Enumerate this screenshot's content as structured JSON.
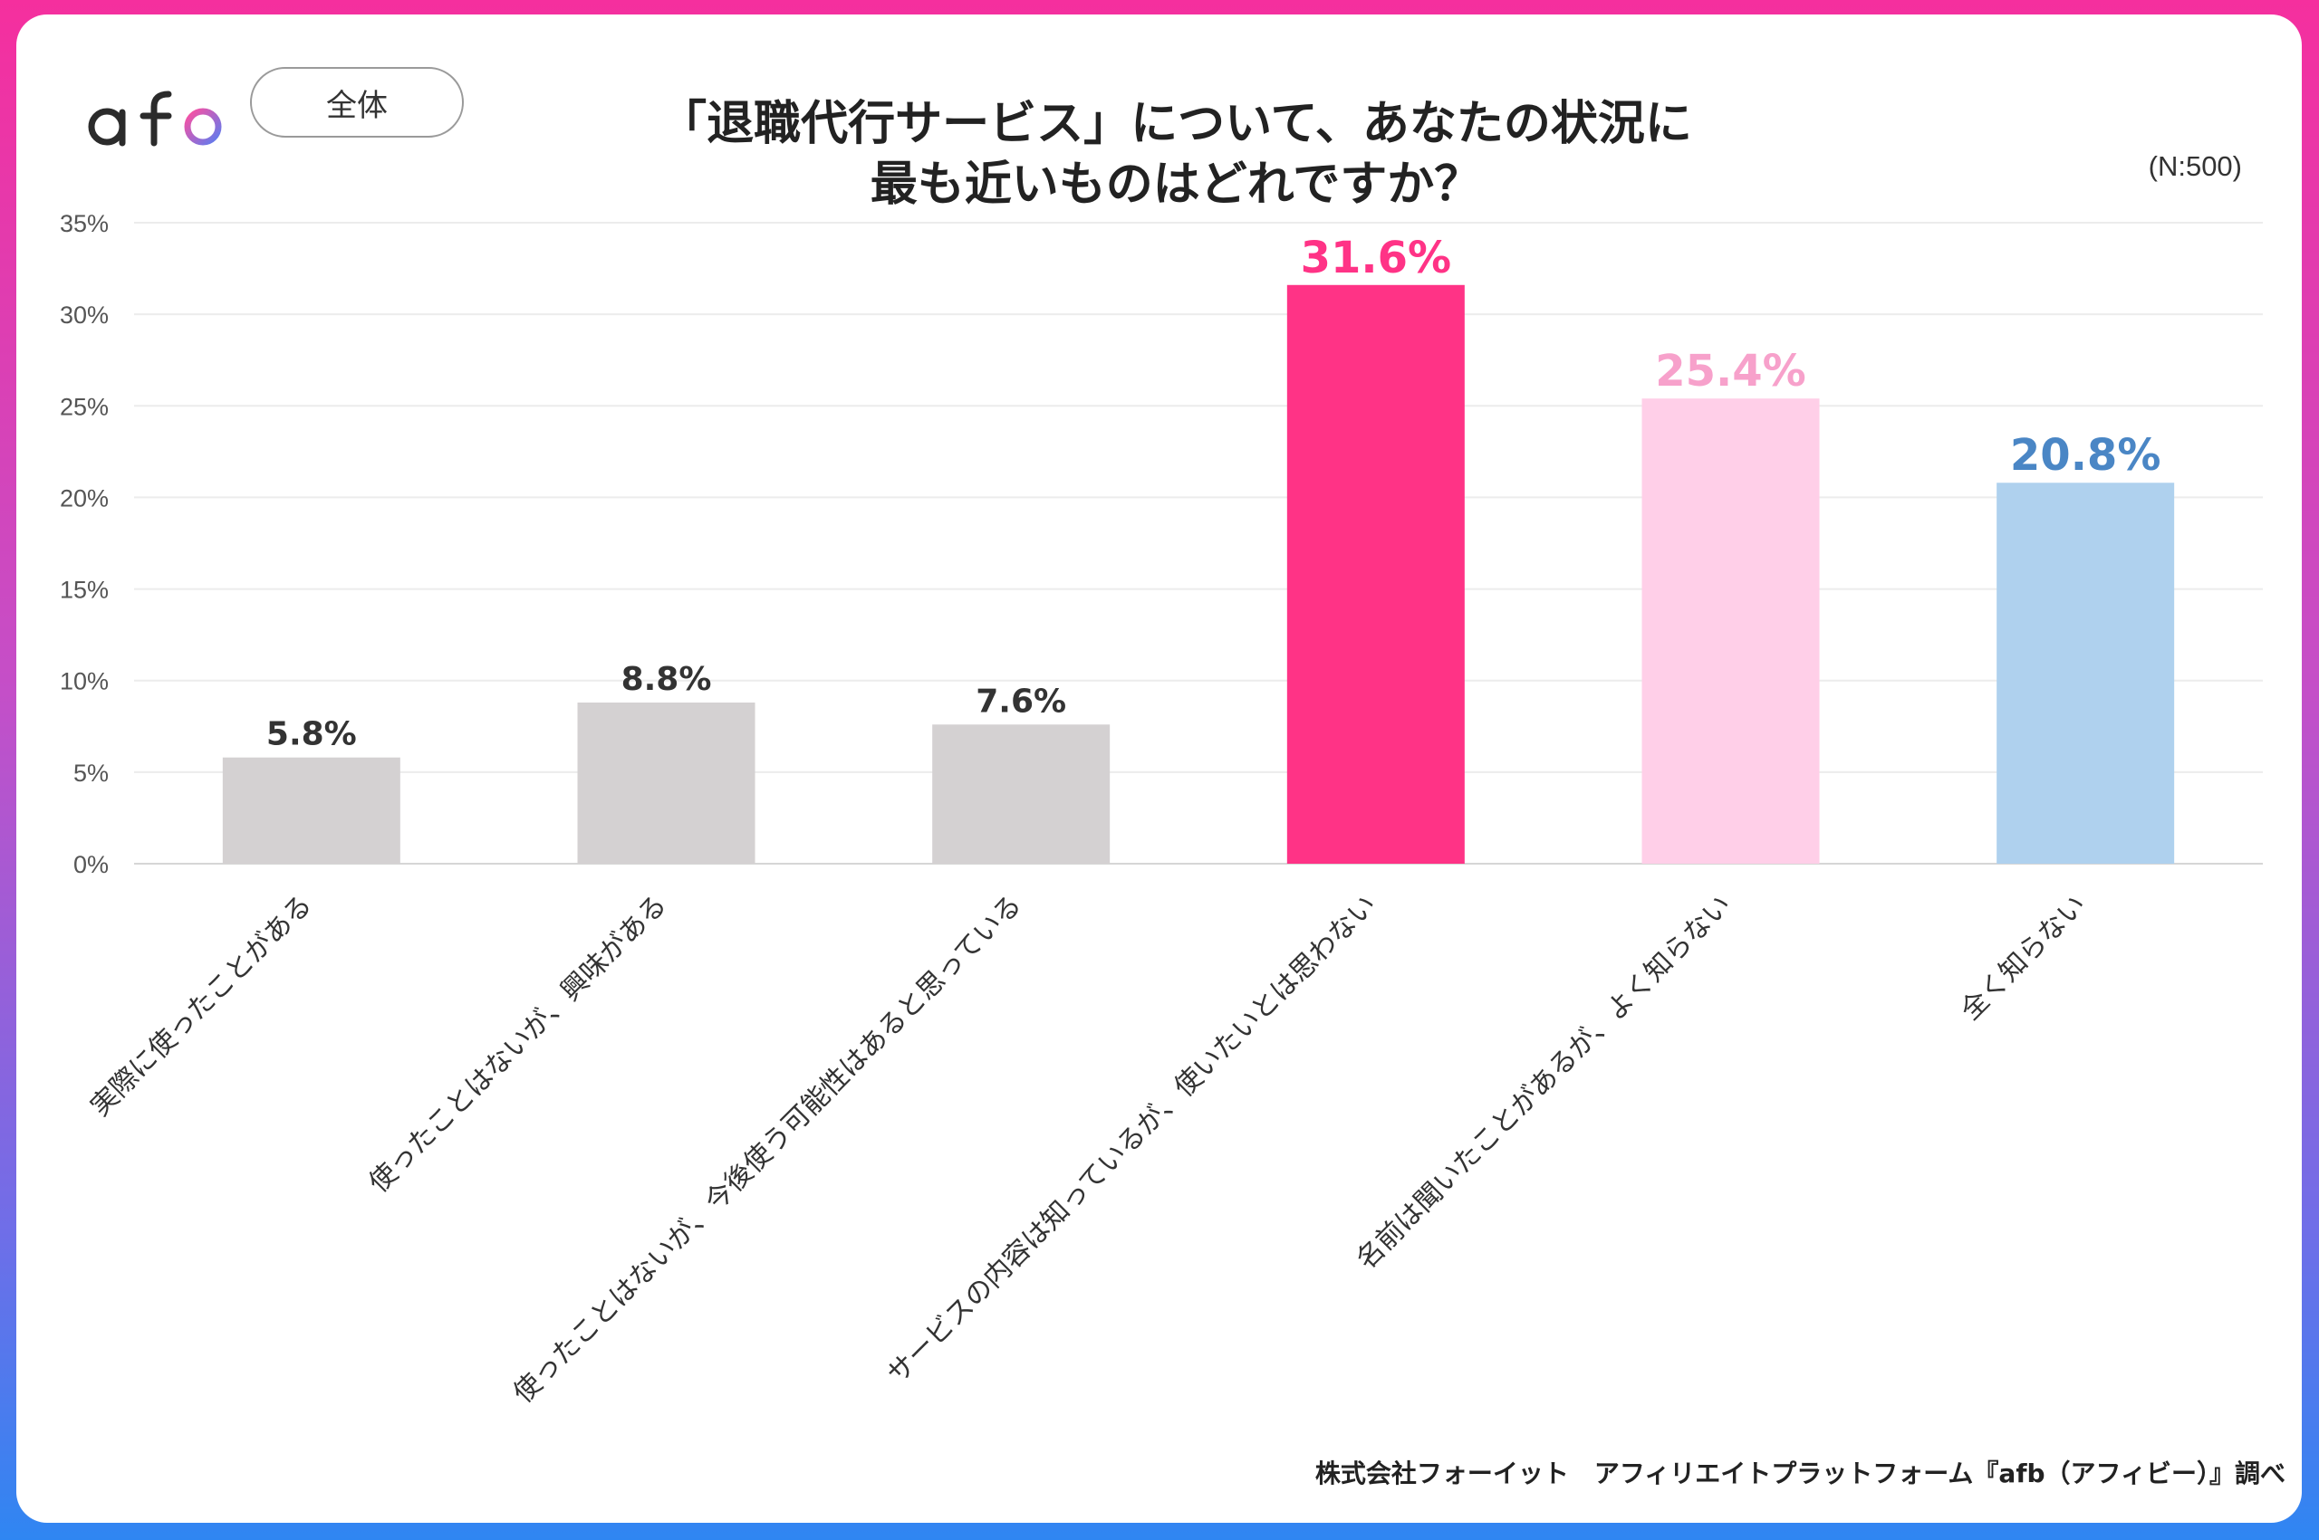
{
  "brand": {
    "logo_text": "afb"
  },
  "badge": {
    "label": "全体"
  },
  "title": {
    "line1": "「退職代行サービス」について、あなたの状況に",
    "line2": "最も近いものはどれですか？"
  },
  "sample_size": "(N:500)",
  "footer": {
    "source": "株式会社フォーイット　アフィリエイトプラットフォーム『afb（アフィビー）』調べ"
  },
  "colors": {
    "grey_bar": "#d4d1d2",
    "magenta": "#ff3386",
    "pink": "#ffcfe8",
    "pink_label": "#f7a1cb",
    "blue": "#afd1ee",
    "blue_label": "#4a86c5",
    "dark_label": "#333333"
  },
  "chart_data": {
    "type": "bar",
    "categories": [
      "実際に使ったことがある",
      "使ったことはないが、興味がある",
      "使ったことはないが、今後使う可能性はあると思っている",
      "サービスの内容は知っているが、使いたいとは思わない",
      "名前は聞いたことがあるが、よく知らない",
      "全く知らない"
    ],
    "values": [
      5.8,
      8.8,
      7.6,
      31.6,
      25.4,
      20.8
    ],
    "value_labels": [
      "5.8%",
      "8.8%",
      "7.6%",
      "31.6%",
      "25.4%",
      "20.8%"
    ],
    "bar_colors": [
      "#d4d1d2",
      "#d4d1d2",
      "#d4d1d2",
      "#ff3386",
      "#ffcfe8",
      "#afd1ee"
    ],
    "label_colors": [
      "#333333",
      "#333333",
      "#333333",
      "#ff3386",
      "#f7a1cb",
      "#4a86c5"
    ],
    "y_ticks": [
      "0%",
      "5%",
      "10%",
      "15%",
      "20%",
      "25%",
      "30%",
      "35%"
    ],
    "ylim": [
      0,
      35
    ],
    "grid": true,
    "legend": "none",
    "title": "「退職代行サービス」について、あなたの状況に最も近いものはどれですか？",
    "xlabel": "",
    "ylabel": ""
  }
}
